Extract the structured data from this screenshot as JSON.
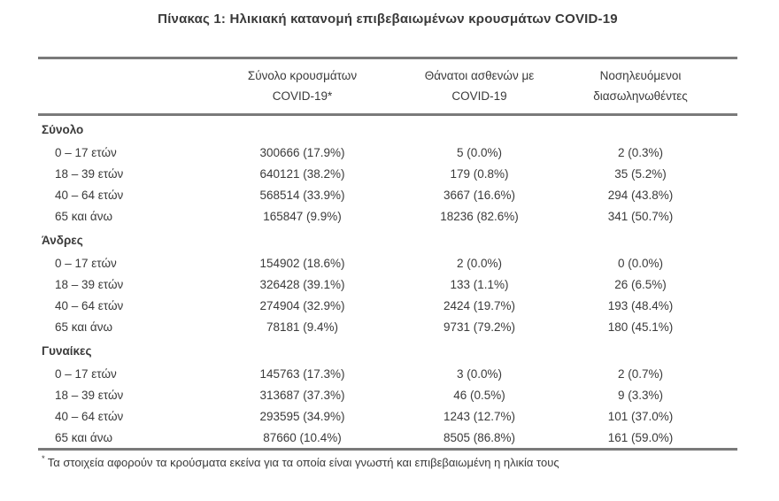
{
  "title": "Πίνακας 1: Ηλικιακή κατανομή επιβεβαιωμένων κρουσμάτων COVID-19",
  "colors": {
    "text": "#3a3a3a",
    "rule": "#7a7a7a",
    "background": "#ffffff"
  },
  "table": {
    "columns": [
      {
        "line1": "Σύνολο κρουσμάτων",
        "line2": "COVID-19*"
      },
      {
        "line1": "Θάνατοι ασθενών με",
        "line2": "COVID-19"
      },
      {
        "line1": "Νοσηλευόμενοι",
        "line2": "διασωληνωθέντες"
      }
    ],
    "sections": [
      {
        "label": "Σύνολο",
        "rows": [
          {
            "age": "0 – 17 ετών",
            "cases": "300666 (17.9%)",
            "deaths": "5 (0.0%)",
            "intubated": "2 (0.3%)"
          },
          {
            "age": "18 – 39 ετών",
            "cases": "640121 (38.2%)",
            "deaths": "179 (0.8%)",
            "intubated": "35 (5.2%)"
          },
          {
            "age": "40 – 64 ετών",
            "cases": "568514 (33.9%)",
            "deaths": "3667 (16.6%)",
            "intubated": "294 (43.8%)"
          },
          {
            "age": "65 και άνω",
            "cases": "165847 (9.9%)",
            "deaths": "18236 (82.6%)",
            "intubated": "341 (50.7%)"
          }
        ]
      },
      {
        "label": "Άνδρες",
        "rows": [
          {
            "age": "0 – 17 ετών",
            "cases": "154902 (18.6%)",
            "deaths": "2 (0.0%)",
            "intubated": "0 (0.0%)"
          },
          {
            "age": "18 – 39 ετών",
            "cases": "326428 (39.1%)",
            "deaths": "133 (1.1%)",
            "intubated": "26 (6.5%)"
          },
          {
            "age": "40 – 64 ετών",
            "cases": "274904 (32.9%)",
            "deaths": "2424 (19.7%)",
            "intubated": "193 (48.4%)"
          },
          {
            "age": "65 και άνω",
            "cases": "78181 (9.4%)",
            "deaths": "9731 (79.2%)",
            "intubated": "180 (45.1%)"
          }
        ]
      },
      {
        "label": "Γυναίκες",
        "rows": [
          {
            "age": "0 – 17 ετών",
            "cases": "145763 (17.3%)",
            "deaths": "3 (0.0%)",
            "intubated": "2 (0.7%)"
          },
          {
            "age": "18 – 39 ετών",
            "cases": "313687 (37.3%)",
            "deaths": "46 (0.5%)",
            "intubated": "9 (3.3%)"
          },
          {
            "age": "40 – 64 ετών",
            "cases": "293595 (34.9%)",
            "deaths": "1243 (12.7%)",
            "intubated": "101 (37.0%)"
          },
          {
            "age": "65 και άνω",
            "cases": "87660 (10.4%)",
            "deaths": "8505 (86.8%)",
            "intubated": "161 (59.0%)"
          }
        ]
      }
    ]
  },
  "footnote": {
    "marker": "*",
    "text": "Τα στοιχεία αφορούν τα κρούσματα εκείνα για τα οποία είναι γνωστή και επιβεβαιωμένη η ηλικία τους"
  }
}
